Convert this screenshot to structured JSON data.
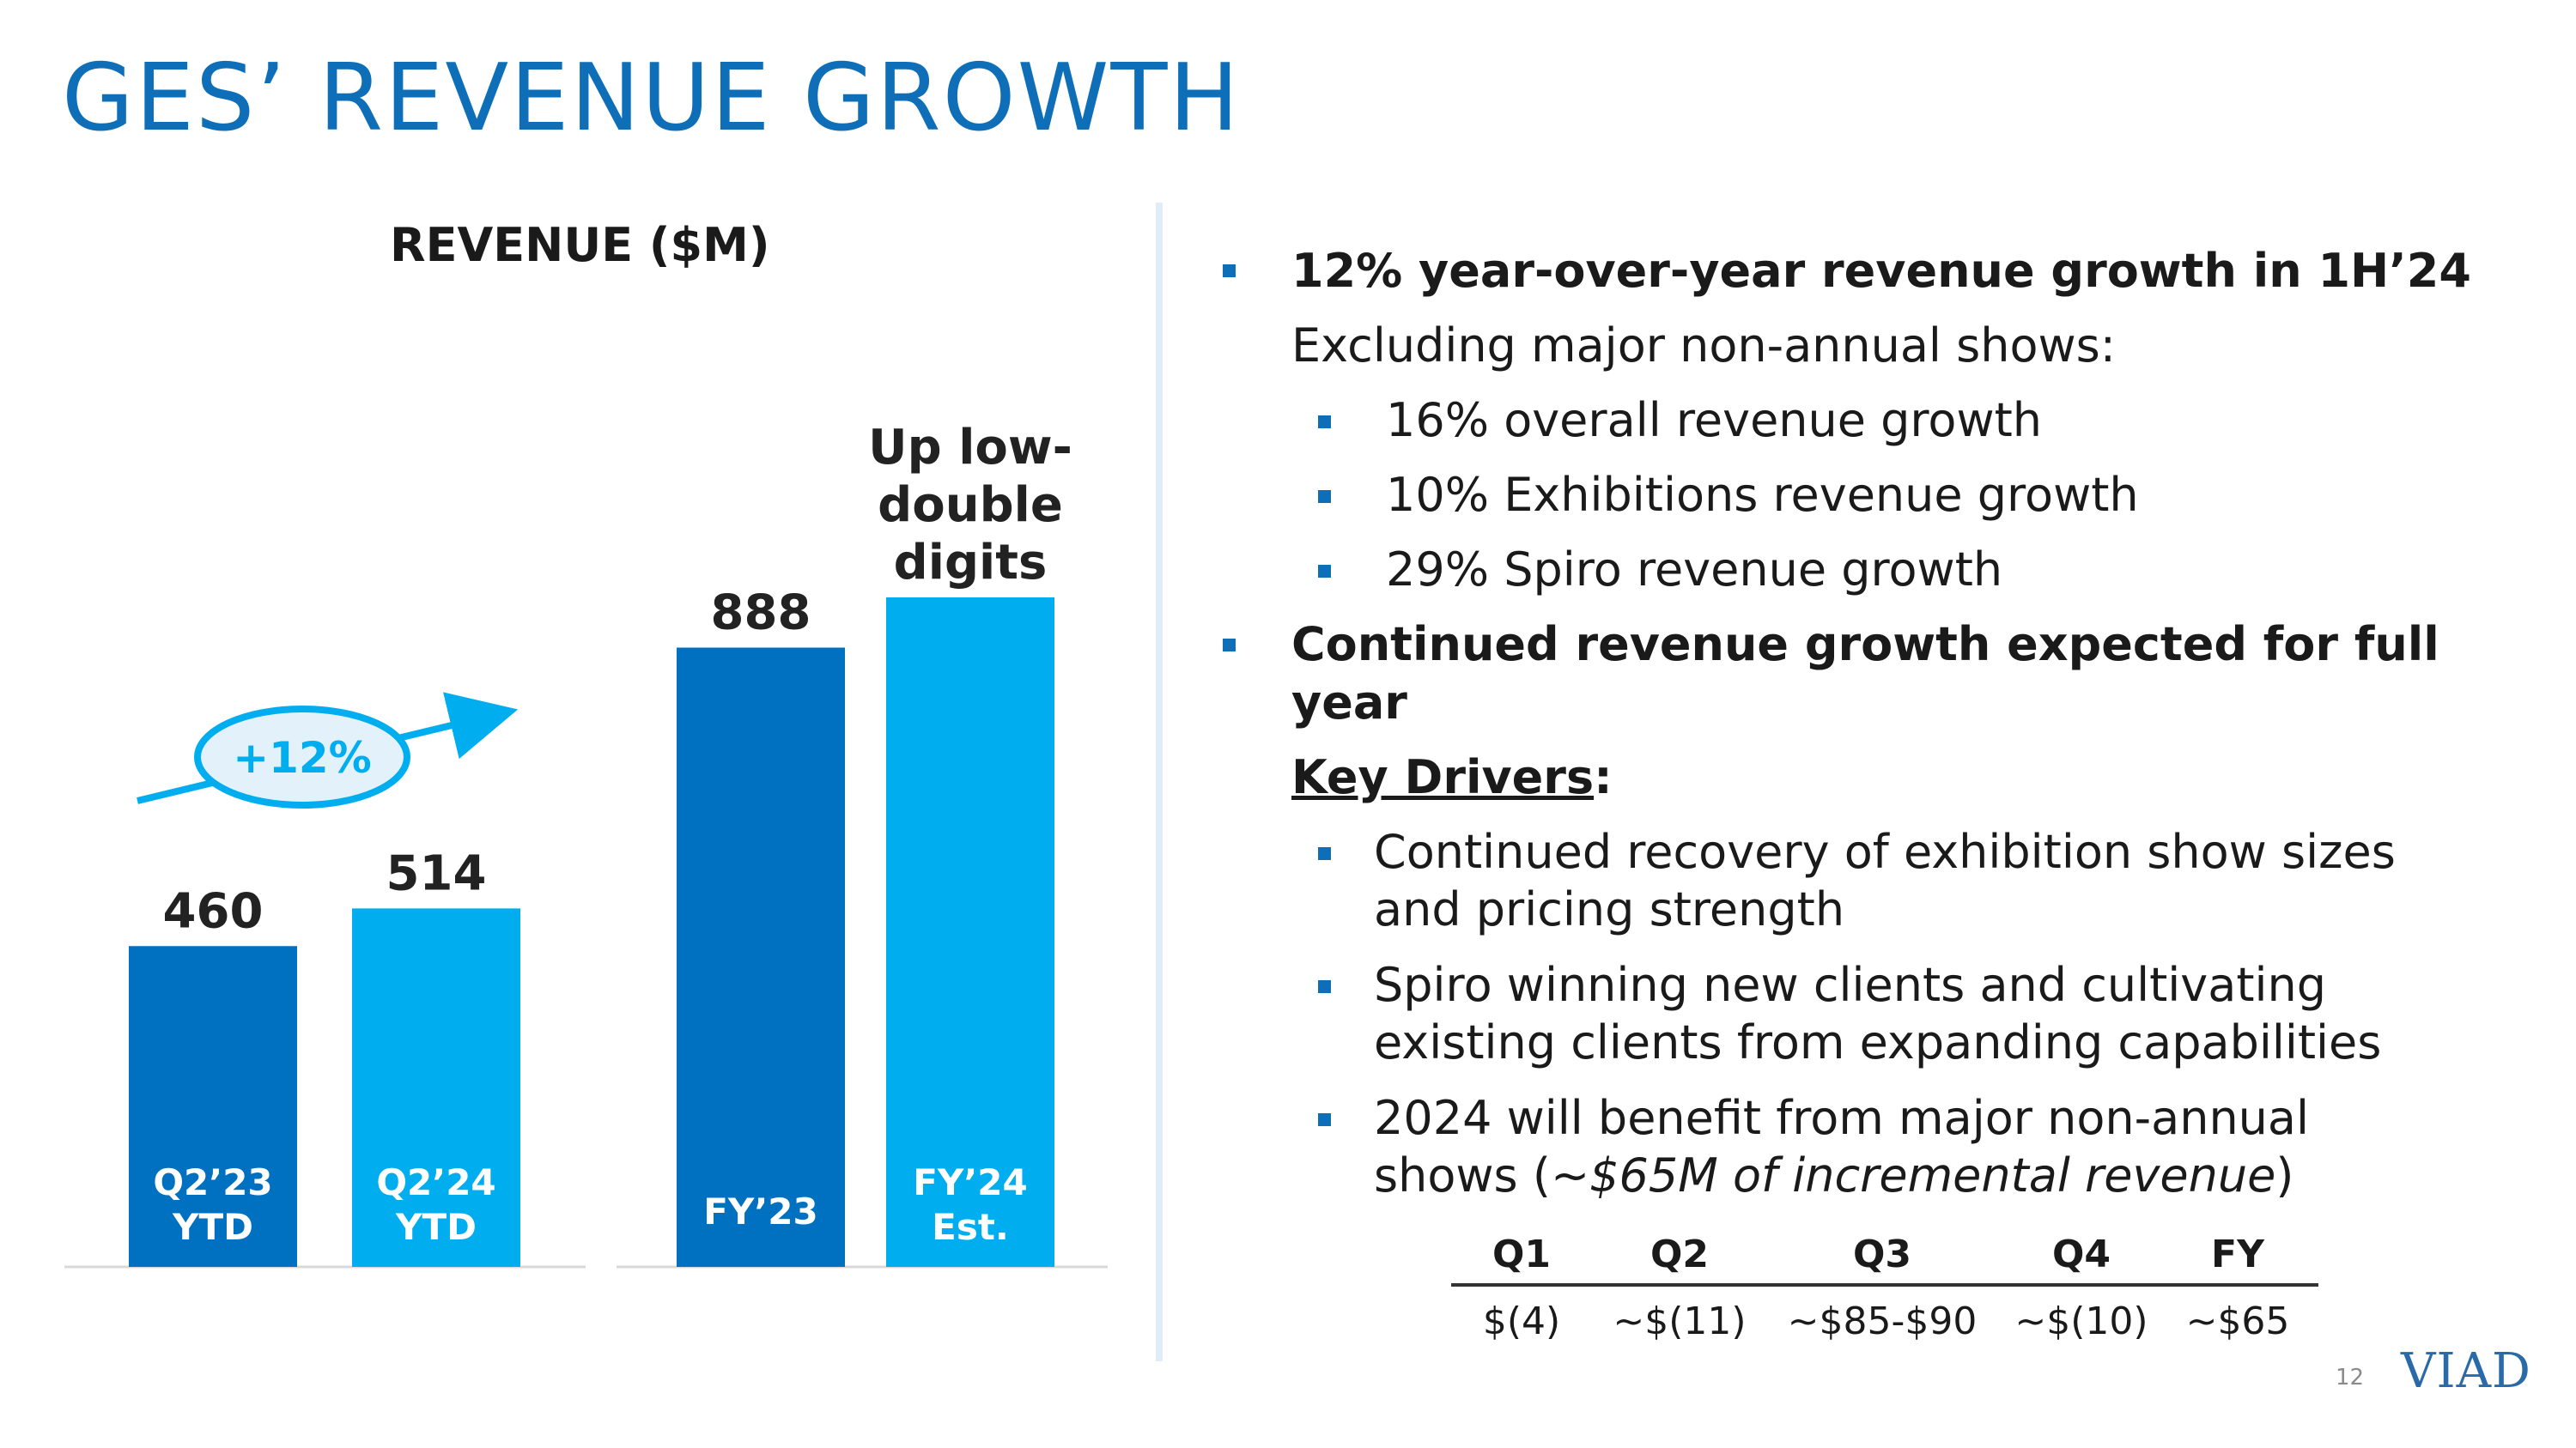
{
  "page": {
    "title": "GES’ REVENUE GROWTH",
    "page_number": "12",
    "logo": "VIAD"
  },
  "colors": {
    "title": "#0e6fb8",
    "bar_dark": "#0070c0",
    "bar_light": "#00aeef",
    "bubble_fill": "#e3f1fb"
  },
  "chart_data": {
    "type": "bar",
    "title": "REVENUE ($M)",
    "groups": [
      {
        "categories": [
          "Q2’23\nYTD",
          "Q2’24\nYTD"
        ],
        "values": [
          460,
          514
        ],
        "labels": [
          "460",
          "514"
        ]
      },
      {
        "categories": [
          "FY’23",
          "FY’24\nEst."
        ],
        "values": [
          888,
          960
        ],
        "labels": [
          "888",
          ""
        ]
      }
    ],
    "annotations": {
      "growth_bubble": "+12%",
      "fy24_label": "Up low-\ndouble\ndigits"
    },
    "ylim": [
      0,
      960
    ]
  },
  "bullets": {
    "b1": "12% year-over-year revenue growth in 1H’24",
    "b1_sub": "Excluding major non-annual shows:",
    "b1_items": [
      "16% overall revenue growth",
      "10% Exhibitions revenue growth",
      "29% Spiro revenue growth"
    ],
    "b2_line1": "Continued revenue growth expected for full",
    "b2_line2": "year",
    "key_drivers": "Key Drivers",
    "key_drivers_colon": ":",
    "d1_l1": "Continued recovery of exhibition show sizes",
    "d1_l2": "and pricing strength",
    "d2_l1": "Spiro winning new clients and cultivating",
    "d2_l2": "existing clients from expanding capabilities",
    "d3_l1": "2024 will benefit from major non-annual",
    "d3_l2_pre": "shows (",
    "d3_l2_em": "~$65M of incremental revenue",
    "d3_l2_post": ")"
  },
  "table": {
    "headers": [
      "Q1",
      "Q2",
      "Q3",
      "Q4",
      "FY"
    ],
    "values": [
      "$(4)",
      "~$(11)",
      "~$85-$90",
      "~$(10)",
      "~$65"
    ]
  }
}
